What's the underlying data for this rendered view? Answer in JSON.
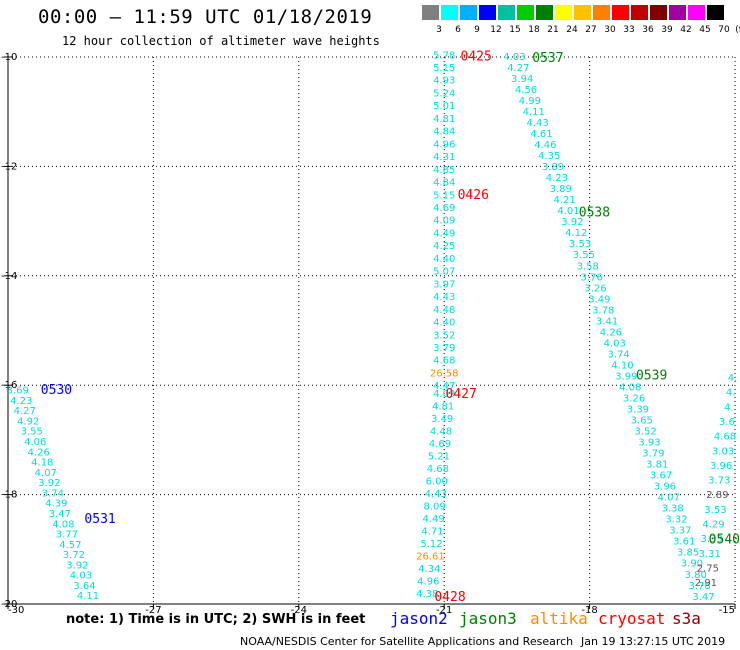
{
  "header": {
    "title": "00:00 – 11:59 UTC 01/18/2019",
    "subtitle": "12 hour collection of altimeter wave heights"
  },
  "legend": {
    "unit": "(ft)",
    "bins": [
      {
        "label": "3",
        "color": "#808080"
      },
      {
        "label": "6",
        "color": "#00ffff"
      },
      {
        "label": "9",
        "color": "#00b0ff"
      },
      {
        "label": "12",
        "color": "#0000ff"
      },
      {
        "label": "15",
        "color": "#00c0a0"
      },
      {
        "label": "18",
        "color": "#00cc00"
      },
      {
        "label": "21",
        "color": "#008000"
      },
      {
        "label": "24",
        "color": "#ffff00"
      },
      {
        "label": "27",
        "color": "#ffc000"
      },
      {
        "label": "30",
        "color": "#ff8000"
      },
      {
        "label": "33",
        "color": "#ff0000"
      },
      {
        "label": "36",
        "color": "#c00000"
      },
      {
        "label": "39",
        "color": "#800000"
      },
      {
        "label": "42",
        "color": "#a000a0"
      },
      {
        "label": "45",
        "color": "#ff00ff"
      },
      {
        "label": "70",
        "color": "#000000"
      }
    ]
  },
  "footer": {
    "note": "note: 1) Time is in UTC; 2) SWH is in feet",
    "satellites": [
      {
        "name": "jason2",
        "color": "#0000ff"
      },
      {
        "name": "jason3",
        "color": "#008000"
      },
      {
        "name": "altika",
        "color": "#ff8c00"
      },
      {
        "name": "cryosat",
        "color": "#ff0000"
      },
      {
        "name": "s3a",
        "color": "#8b0000"
      }
    ],
    "credit": "NOAA/NESDIS Center for Satellite Applications and Research",
    "timestamp": "Jan 19 13:27:15 UTC 2019"
  },
  "chart_data": {
    "type": "scatter",
    "title": "00:00 – 11:59 UTC 01/18/2019",
    "subtitle": "12 hour collection of altimeter wave heights",
    "xlim": [
      -30,
      -15
    ],
    "ylim": [
      -20,
      -10
    ],
    "xticks": [
      "-30",
      "-27",
      "-24",
      "-21",
      "-18",
      "-15"
    ],
    "yticks": [
      "-10",
      "-12",
      "-14",
      "-16",
      "-18",
      "-20"
    ],
    "grid": true,
    "swh_unit": "ft",
    "colors": {
      "cyan": "#00dddd",
      "orange": "#ff8c00",
      "gray": "#555555"
    },
    "tracks": [
      {
        "name": "jason2",
        "color": "#0000ff",
        "labels": [
          {
            "text": "0530",
            "x": -29.0,
            "y": -16.07
          },
          {
            "text": "0531",
            "x": -28.1,
            "y": -18.43
          }
        ]
      },
      {
        "name": "cryosat",
        "color": "#ff0000",
        "labels": [
          {
            "text": "0425",
            "x": -20.34,
            "y": -9.97
          },
          {
            "text": "0426",
            "x": -20.4,
            "y": -12.5
          },
          {
            "text": "0427",
            "x": -20.65,
            "y": -16.14
          },
          {
            "text": "0428",
            "x": -20.88,
            "y": -19.85
          }
        ]
      },
      {
        "name": "jason3",
        "color": "#008000",
        "labels": [
          {
            "text": "0537",
            "x": -18.86,
            "y": -10.0
          },
          {
            "text": "0538",
            "x": -17.9,
            "y": -12.82
          },
          {
            "text": "0539",
            "x": -16.72,
            "y": -15.8
          },
          {
            "text": "0540",
            "x": -15.22,
            "y": -18.8
          }
        ]
      }
    ],
    "series": [
      {
        "name": "track-A",
        "x0": -29.8,
        "y0": -16.08,
        "x1": -28.35,
        "y1": -19.84,
        "color": "cyan",
        "values": [
          "3.69",
          "4.23",
          "4.27",
          "4.92",
          "3.55",
          "4.06",
          "4.26",
          "4.18",
          "4.07",
          "3.92",
          "3.74",
          "4.39",
          "3.47",
          "4.08",
          "3.77",
          "4.57",
          "3.72",
          "3.92",
          "4.03",
          "3.64",
          "4.11"
        ]
      },
      {
        "name": "track-B",
        "x0": -21.0,
        "y0": -9.95,
        "x1": -21.0,
        "y1": -16.0,
        "color": "cyan",
        "values": [
          "5.78",
          "5.15",
          "4.93",
          "5.24",
          "5.01",
          "4.81",
          "4.84",
          "4.96",
          "4.31",
          "4.85",
          "4.84",
          "5.15",
          "4.69",
          "4.09",
          "4.49",
          "4.25",
          "4.40",
          "5.07",
          "3.97",
          "4.43",
          "4.48",
          "4.40",
          "3.52",
          "3.79",
          "4.68",
          "26.58",
          "4.47"
        ],
        "overrides": {
          "25": "orange"
        }
      },
      {
        "name": "track-C",
        "x0": -21.0,
        "y0": -16.14,
        "x1": -21.35,
        "y1": -19.8,
        "color": "cyan",
        "values": [
          "4.09",
          "4.81",
          "3.49",
          "4.48",
          "4.69",
          "5.21",
          "4.68",
          "6.00",
          "4.43",
          "8.09",
          "4.49",
          "4.71",
          "5.12",
          "26.61",
          "4.34",
          "4.96",
          "4.38"
        ],
        "overrides": {
          "13": "orange"
        }
      },
      {
        "name": "track-D",
        "x0": -19.55,
        "y0": -9.98,
        "x1": -15.65,
        "y1": -19.85,
        "color": "cyan",
        "values": [
          "4.03",
          "4.27",
          "3.94",
          "4.56",
          "4.99",
          "4.11",
          "4.43",
          "4.61",
          "4.46",
          "4.35",
          "3.89",
          "4.23",
          "3.89",
          "4.21",
          "4.01",
          "3.92",
          "4.12",
          "3.53",
          "3.55",
          "3.58",
          "3.76",
          "3.26",
          "3.49",
          "3.78",
          "3.41",
          "4.26",
          "4.03",
          "3.74",
          "4.10",
          "3.99",
          "4.08",
          "3.26",
          "3.39",
          "3.65",
          "3.52",
          "3.93",
          "3.79",
          "3.81",
          "3.67",
          "3.96",
          "4.07",
          "3.38",
          "3.32",
          "3.37",
          "3.61",
          "3.85",
          "3.90",
          "3.80",
          "3.78",
          "3.47"
        ]
      },
      {
        "name": "track-E",
        "x0": -15.05,
        "y0": -15.85,
        "x1": -15.6,
        "y1": -19.6,
        "color": "cyan",
        "values": [
          "4.",
          "4.",
          "4.",
          "3.6",
          "4.68",
          "3.03",
          "3.96",
          "3.73",
          "2.89",
          "3.53",
          "4.29",
          "3.33",
          "3.31",
          "2.75",
          "2.91"
        ],
        "overrides": {
          "8": "gray",
          "13": "gray",
          "14": "gray"
        }
      }
    ]
  }
}
